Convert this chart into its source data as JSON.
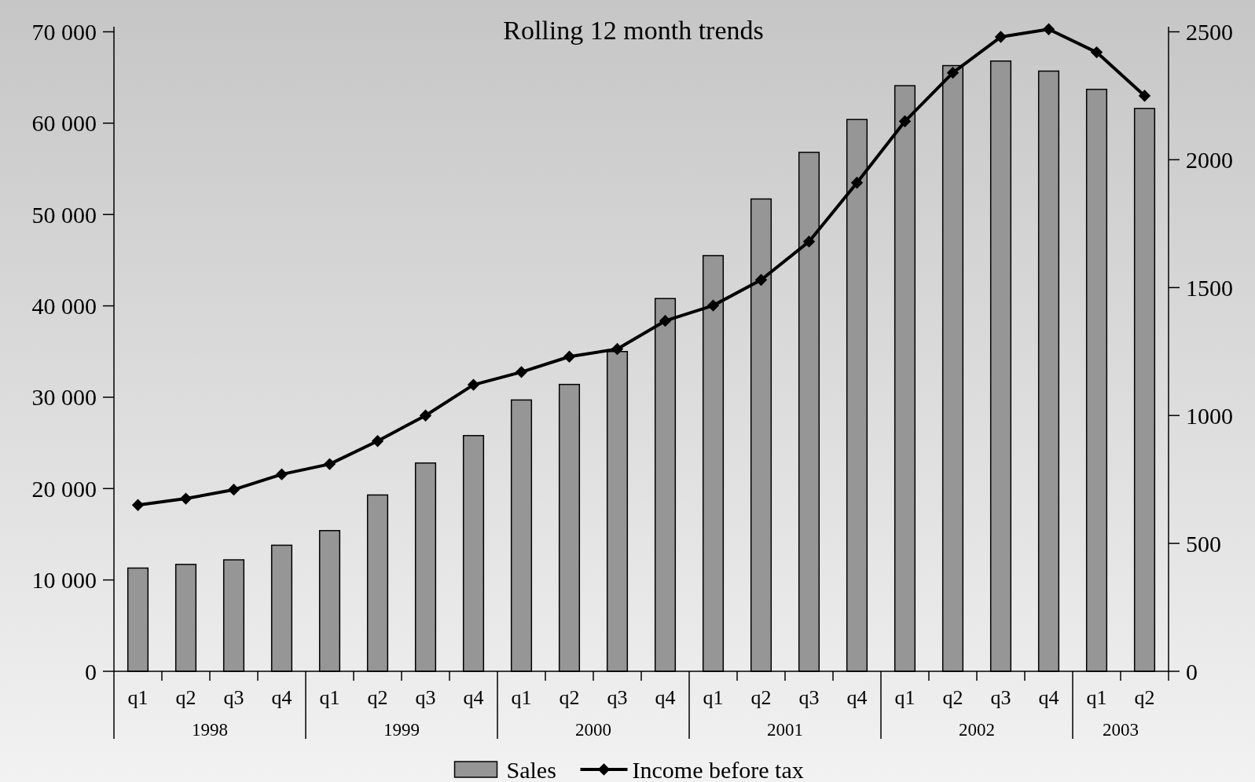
{
  "chart_data": {
    "type": "bar",
    "title": "Rolling 12 month trends",
    "categories": [
      "q1",
      "q2",
      "q3",
      "q4",
      "q1",
      "q2",
      "q3",
      "q4",
      "q1",
      "q2",
      "q3",
      "q4",
      "q1",
      "q2",
      "q3",
      "q4",
      "q1",
      "q2",
      "q3",
      "q4",
      "q1",
      "q2"
    ],
    "annotations": [
      "1998",
      "1999",
      "2000",
      "2001",
      "2002",
      "2003"
    ],
    "series": [
      {
        "name": "Sales",
        "color": "#969696",
        "values": [
          11300,
          11700,
          12200,
          13800,
          15400,
          19300,
          22800,
          25800,
          29700,
          31400,
          35000,
          40800,
          45500,
          51700,
          56800,
          60400,
          64100,
          66300,
          66800,
          65700,
          63700,
          61600
        ]
      },
      {
        "name": "Income before tax",
        "type": "line",
        "axis": "y2",
        "color": "#000000",
        "marker": "diamond",
        "values": [
          650,
          675,
          710,
          770,
          810,
          900,
          1000,
          1120,
          1170,
          1230,
          1260,
          1370,
          1430,
          1530,
          1680,
          1910,
          2150,
          2340,
          2480,
          2510,
          2420,
          2250
        ]
      }
    ],
    "ylim": [
      0,
      70560
    ],
    "yticks": [
      {
        "value": 0,
        "label": "0"
      },
      {
        "value": 10000,
        "label": "10 000"
      },
      {
        "value": 20000,
        "label": "20 000"
      },
      {
        "value": 30000,
        "label": "30 000"
      },
      {
        "value": 40000,
        "label": "40 000"
      },
      {
        "value": 50000,
        "label": "50 000"
      },
      {
        "value": 60000,
        "label": "60 000"
      },
      {
        "value": 70000,
        "label": "70 000"
      }
    ],
    "y2lim": [
      0,
      2520
    ],
    "y2ticks": [
      0,
      500,
      1000,
      1500,
      2000,
      2500
    ],
    "legend": "bottom",
    "grid": false
  }
}
